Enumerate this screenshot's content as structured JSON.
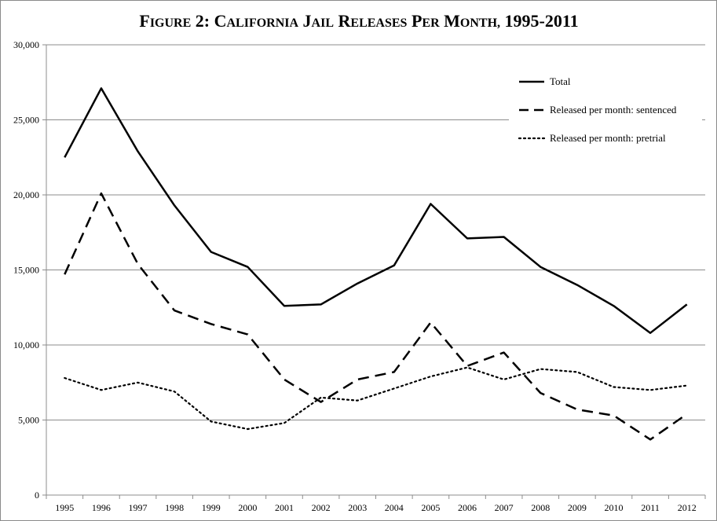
{
  "chart_data": {
    "type": "line",
    "title": "Figure 2: California Jail Releases per Month, 1995-2011",
    "xlabel": "",
    "ylabel": "",
    "ylim": [
      0,
      30000
    ],
    "y_ticks": [
      0,
      5000,
      10000,
      15000,
      20000,
      25000,
      30000
    ],
    "y_tick_labels": [
      "0",
      "5,000",
      "10,000",
      "15,000",
      "20,000",
      "25,000",
      "30,000"
    ],
    "categories": [
      "1995",
      "1996",
      "1997",
      "1998",
      "1999",
      "2000",
      "2001",
      "2002",
      "2003",
      "2004",
      "2005",
      "2006",
      "2007",
      "2008",
      "2009",
      "2010",
      "2011",
      "2012"
    ],
    "grid": "horizontal",
    "legend_position": "top-right",
    "series": [
      {
        "name": "Total",
        "style": "solid",
        "color": "#000000",
        "values": [
          22500,
          27100,
          22900,
          19300,
          16200,
          15200,
          12600,
          12700,
          14100,
          15300,
          19400,
          17100,
          17200,
          15200,
          14000,
          12600,
          10800,
          12700
        ]
      },
      {
        "name": "Released per month: sentenced",
        "style": "dashed",
        "color": "#000000",
        "values": [
          14700,
          20100,
          15400,
          12300,
          11400,
          10700,
          7700,
          6200,
          7700,
          8200,
          11500,
          8600,
          9500,
          6800,
          5700,
          5300,
          3700,
          5400
        ]
      },
      {
        "name": "Released per month: pretrial",
        "style": "dotted",
        "color": "#000000",
        "values": [
          7800,
          7000,
          7500,
          6900,
          4900,
          4400,
          4800,
          6500,
          6300,
          7100,
          7900,
          8500,
          7700,
          8400,
          8200,
          7200,
          7000,
          7300
        ]
      }
    ]
  }
}
